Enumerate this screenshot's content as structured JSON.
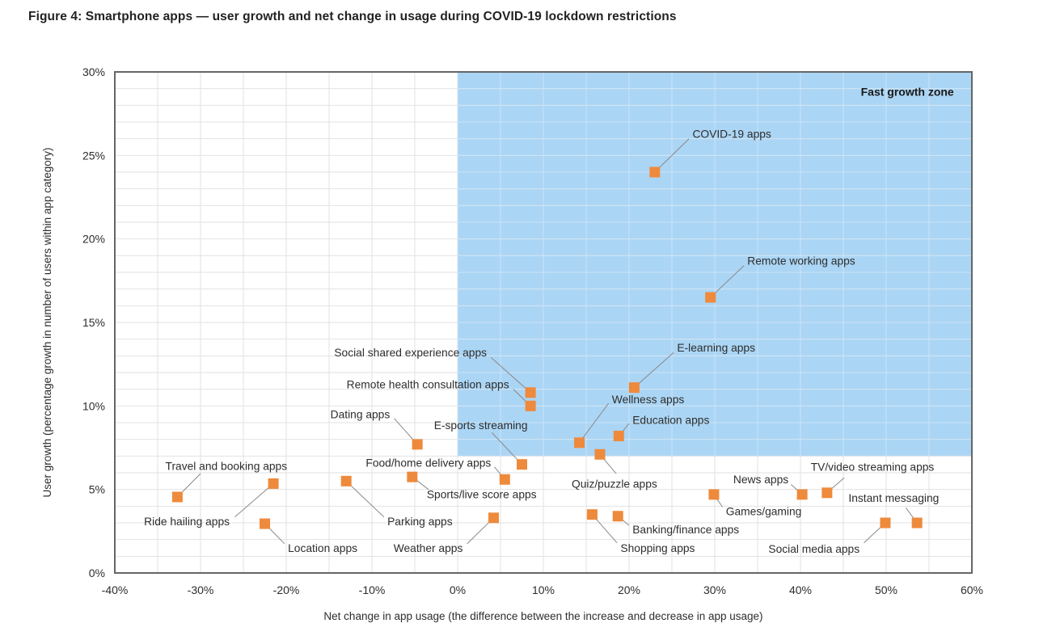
{
  "figure": {
    "title": "Figure 4: Smartphone apps — user growth and net change in usage during COVID-19 lockdown restrictions"
  },
  "chart_data": {
    "type": "scatter",
    "xlabel": "Net change in app usage (the difference between the increase and decrease in app usage)",
    "ylabel": "User growth (percentage growth in number of users within app category)",
    "xlim": [
      -40,
      60
    ],
    "ylim": [
      0,
      30
    ],
    "x_tick_step": 10,
    "y_tick_step": 5,
    "x_grid_step": 5,
    "y_grid_step": 1,
    "tick_suffix": "%",
    "grid": true,
    "legend": "none",
    "fast_growth_zone": {
      "label": "Fast growth zone",
      "x_range": [
        0,
        60
      ],
      "y_range": [
        7,
        30
      ],
      "label_pos": {
        "x": 57.9,
        "y": 28.8,
        "anchor": "end"
      }
    },
    "marker": {
      "shape": "square",
      "size": 13
    },
    "points": [
      {
        "label": "COVID-19 apps",
        "x": 23,
        "y": 24,
        "label_x": 27.4,
        "label_y": 26.3,
        "anchor": "start",
        "line_end": [
          27.0,
          26.0
        ]
      },
      {
        "label": "Remote working apps",
        "x": 29.5,
        "y": 16.5,
        "label_x": 33.8,
        "label_y": 18.7,
        "anchor": "start",
        "line_end": [
          33.4,
          18.4
        ]
      },
      {
        "label": "E-learning apps",
        "x": 20.6,
        "y": 11.1,
        "label_x": 25.6,
        "label_y": 13.5,
        "anchor": "start",
        "line_end": [
          25.2,
          13.2
        ]
      },
      {
        "label": "Social shared experience apps",
        "x": 8.5,
        "y": 10.8,
        "label_x": 3.4,
        "label_y": 13.2,
        "anchor": "end",
        "line_end": [
          3.9,
          12.9
        ]
      },
      {
        "label": "Remote health consultation apps",
        "x": 8.5,
        "y": 10.0,
        "label_x": 6.0,
        "label_y": 11.3,
        "anchor": "end",
        "line_end": [
          6.5,
          11.0
        ]
      },
      {
        "label": "Wellness apps",
        "x": 14.2,
        "y": 7.8,
        "label_x": 18.0,
        "label_y": 10.4,
        "anchor": "start",
        "line_end": [
          17.6,
          10.15
        ]
      },
      {
        "label": "Education apps",
        "x": 18.8,
        "y": 8.2,
        "label_x": 20.4,
        "label_y": 9.15,
        "anchor": "start",
        "line_end": [
          20.0,
          8.95
        ]
      },
      {
        "label": "Quiz/puzzle apps",
        "x": 16.6,
        "y": 7.1,
        "label_x": 13.3,
        "label_y": 5.35,
        "anchor": "start",
        "line_end": [
          18.5,
          5.95
        ]
      },
      {
        "label": "Dating apps",
        "x": -4.7,
        "y": 7.7,
        "label_x": -7.9,
        "label_y": 9.5,
        "anchor": "end",
        "line_end": [
          -7.4,
          9.25
        ]
      },
      {
        "label": "E-sports streaming",
        "x": 7.5,
        "y": 6.5,
        "label_x": 2.7,
        "label_y": 8.85,
        "anchor": "middle",
        "line_end": [
          4.0,
          8.4
        ]
      },
      {
        "label": "Sports/live score apps",
        "x": -5.3,
        "y": 5.75,
        "label_x": -3.6,
        "label_y": 4.7,
        "anchor": "start",
        "line_end": [
          -3.4,
          5.0
        ]
      },
      {
        "label": "Food/home delivery apps",
        "x": 5.5,
        "y": 5.6,
        "label_x": 3.9,
        "label_y": 6.6,
        "anchor": "end",
        "line_end": [
          4.3,
          6.35
        ]
      },
      {
        "label": "Parking apps",
        "x": -13,
        "y": 5.5,
        "label_x": -8.2,
        "label_y": 3.1,
        "anchor": "start",
        "line_end": [
          -8.6,
          3.35
        ]
      },
      {
        "label": "Ride hailing apps",
        "x": -21.5,
        "y": 5.35,
        "label_x": -26.6,
        "label_y": 3.1,
        "anchor": "end",
        "line_end": [
          -26.0,
          3.35
        ]
      },
      {
        "label": "Travel and booking apps",
        "x": -32.7,
        "y": 4.55,
        "label_x": -34.1,
        "label_y": 6.4,
        "anchor": "start",
        "line_end": [
          -30.0,
          5.95
        ]
      },
      {
        "label": "Location apps",
        "x": -22.5,
        "y": 2.95,
        "label_x": -19.8,
        "label_y": 1.5,
        "anchor": "start",
        "line_end": [
          -20.2,
          1.75
        ]
      },
      {
        "label": "Weather apps",
        "x": 4.2,
        "y": 3.3,
        "label_x": 0.6,
        "label_y": 1.5,
        "anchor": "end",
        "line_end": [
          1.1,
          1.75
        ]
      },
      {
        "label": "Shopping apps",
        "x": 15.7,
        "y": 3.5,
        "label_x": 19.0,
        "label_y": 1.5,
        "anchor": "start",
        "line_end": [
          18.6,
          1.8
        ]
      },
      {
        "label": "Banking/finance apps",
        "x": 18.7,
        "y": 3.4,
        "label_x": 20.4,
        "label_y": 2.6,
        "anchor": "start",
        "line_end": [
          20.0,
          2.85
        ]
      },
      {
        "label": "Games/gaming",
        "x": 29.9,
        "y": 4.7,
        "label_x": 31.3,
        "label_y": 3.7,
        "anchor": "start",
        "line_end": [
          30.9,
          3.95
        ]
      },
      {
        "label": "News apps",
        "x": 40.2,
        "y": 4.7,
        "label_x": 38.6,
        "label_y": 5.6,
        "anchor": "end",
        "line_end": [
          38.9,
          5.3
        ]
      },
      {
        "label": "TV/video streaming apps",
        "x": 43.1,
        "y": 4.8,
        "label_x": 41.2,
        "label_y": 6.35,
        "anchor": "start",
        "line_end": [
          45.1,
          5.7
        ]
      },
      {
        "label": "Instant messaging",
        "x": 53.6,
        "y": 3.0,
        "label_x": 45.6,
        "label_y": 4.5,
        "anchor": "start",
        "line_end": [
          52.3,
          3.9
        ]
      },
      {
        "label": "Social media apps",
        "x": 49.9,
        "y": 3.0,
        "label_x": 46.9,
        "label_y": 1.45,
        "anchor": "end",
        "line_end": [
          47.4,
          1.8
        ]
      }
    ],
    "colors": {
      "marker": "#EE8A3C",
      "zone_fill": "#ABD5F4",
      "grid": "#E2E2E2",
      "grid_on_zone": "#CBE4F8",
      "axis_border": "#666666",
      "leader_line": "#8A8A8A",
      "text": "#2D2D2D"
    }
  }
}
